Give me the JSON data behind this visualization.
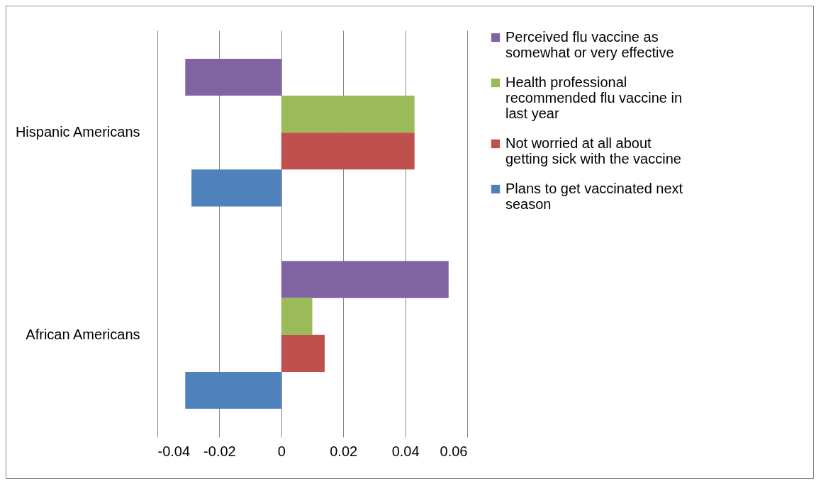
{
  "chart_data": {
    "type": "bar",
    "orientation": "horizontal",
    "categories": [
      "Hispanic Americans",
      "African Americans"
    ],
    "series": [
      {
        "name": "Perceived flu vaccine as somewhat or very effective",
        "color": "#8064a2",
        "values": [
          -0.031,
          0.054
        ]
      },
      {
        "name": "Health professional recommended flu vaccine in last year",
        "color": "#9bbb59",
        "values": [
          0.043,
          0.01
        ]
      },
      {
        "name": "Not worried at all about getting sick with the vaccine",
        "color": "#c0504d",
        "values": [
          0.043,
          0.014
        ]
      },
      {
        "name": "Plans to get vaccinated next season",
        "color": "#4f81bd",
        "values": [
          -0.029,
          -0.031
        ]
      }
    ],
    "xlim": [
      -0.04,
      0.06
    ],
    "xticks": [
      -0.04,
      -0.02,
      0,
      0.02,
      0.04,
      0.06
    ],
    "grid": "x",
    "legend": "right"
  }
}
